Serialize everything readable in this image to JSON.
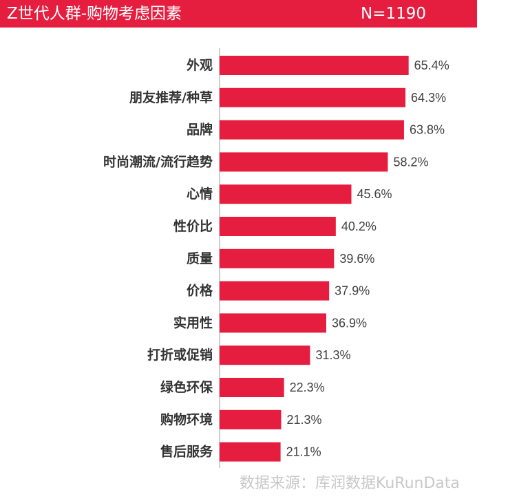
{
  "header": {
    "title": "Z世代人群-购物考虑因素",
    "sample": "N=1190"
  },
  "colors": {
    "header_bg": "#e51e3f",
    "bar": "#e51e3f",
    "axis": "#bfbfbf"
  },
  "chart_data": {
    "type": "bar",
    "orientation": "horizontal",
    "categories": [
      "外观",
      "朋友推荐/种草",
      "品牌",
      "时尚潮流/流行趋势",
      "心情",
      "性价比",
      "质量",
      "价格",
      "实用性",
      "打折或促销",
      "绿色环保",
      "购物环境",
      "售后服务"
    ],
    "values": [
      65.4,
      64.3,
      63.8,
      58.2,
      45.6,
      40.2,
      39.6,
      37.9,
      36.9,
      31.3,
      22.3,
      21.3,
      21.1
    ],
    "value_labels": [
      "65.4%",
      "64.3%",
      "63.8%",
      "58.2%",
      "45.6%",
      "40.2%",
      "39.6%",
      "37.9%",
      "36.9%",
      "31.3%",
      "22.3%",
      "21.3%",
      "21.1%"
    ],
    "title": "",
    "xlabel": "",
    "ylabel": "",
    "xlim": [
      0,
      100
    ],
    "grid": false,
    "legend": "none"
  },
  "source": "数据来源：库润数据KuRunData"
}
